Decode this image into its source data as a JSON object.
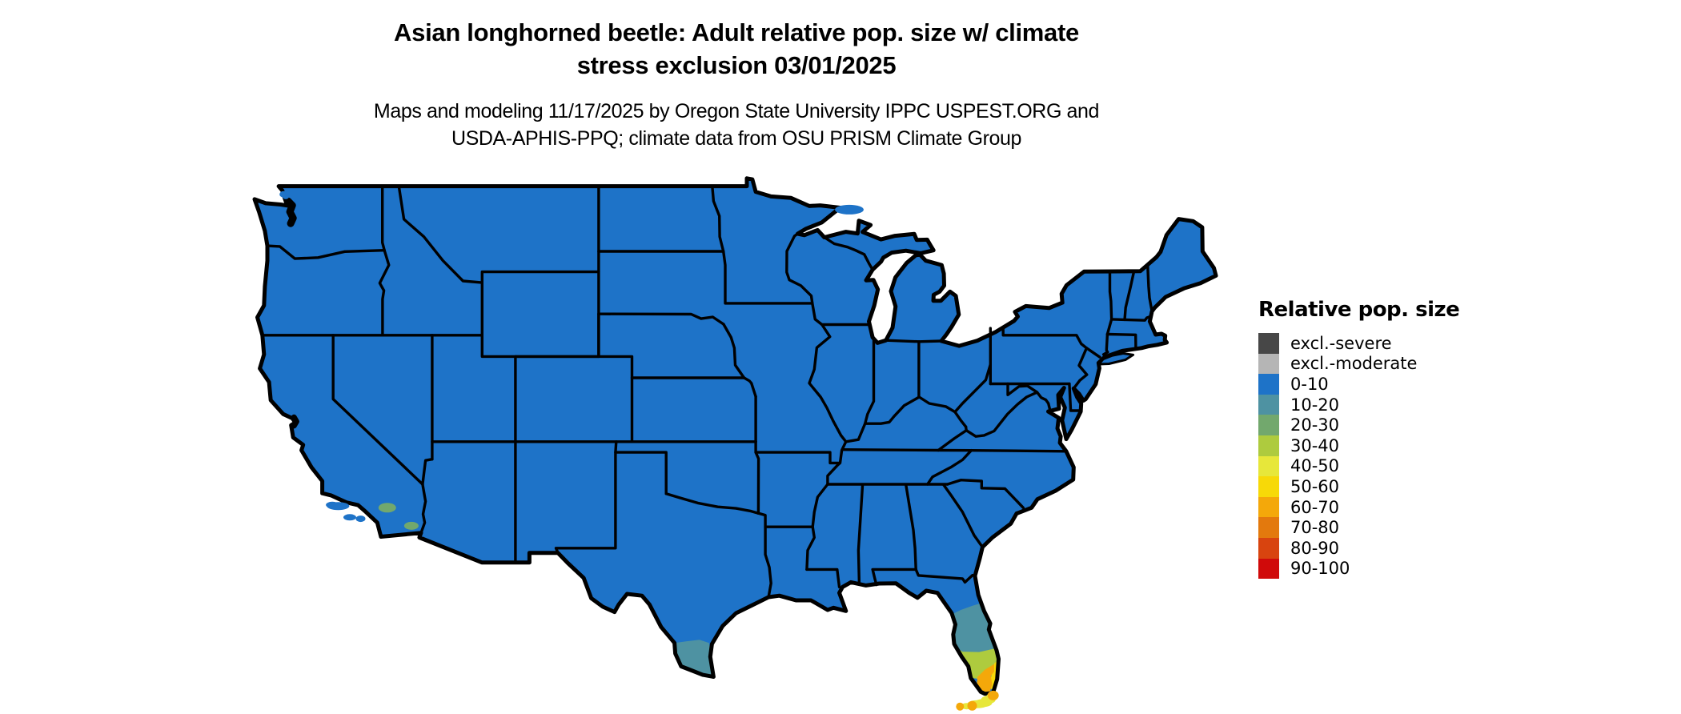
{
  "title": {
    "line1": "Asian longhorned beetle: Adult relative pop. size w/ climate",
    "line2": "stress exclusion 03/01/2025"
  },
  "subtitle": {
    "line1": "Maps and modeling 11/17/2025 by Oregon State University IPPC USPEST.ORG and",
    "line2": "USDA-APHIS-PPQ; climate data from OSU PRISM Climate Group"
  },
  "legend": {
    "title": "Relative pop. size",
    "items": [
      {
        "key": "excl_severe",
        "label": "excl.-severe",
        "color": "#474747"
      },
      {
        "key": "excl_moderate",
        "label": "excl.-moderate",
        "color": "#B5B5B5"
      },
      {
        "key": "v0_10",
        "label": "0-10",
        "color": "#1E73C8"
      },
      {
        "key": "v10_20",
        "label": "10-20",
        "color": "#4E92A2"
      },
      {
        "key": "v20_30",
        "label": "20-30",
        "color": "#72A86D"
      },
      {
        "key": "v30_40",
        "label": "30-40",
        "color": "#AECB3E"
      },
      {
        "key": "v40_50",
        "label": "40-50",
        "color": "#E7E73A"
      },
      {
        "key": "v50_60",
        "label": "50-60",
        "color": "#F7D908"
      },
      {
        "key": "v60_70",
        "label": "60-70",
        "color": "#F4A80A"
      },
      {
        "key": "v70_80",
        "label": "70-80",
        "color": "#E3790D"
      },
      {
        "key": "v80_90",
        "label": "80-90",
        "color": "#D8440F"
      },
      {
        "key": "v90_100",
        "label": "90-100",
        "color": "#D00A0A"
      }
    ]
  },
  "map": {
    "region": "Continental United States",
    "border_color": "#000000",
    "base_fill_key": "v0_10",
    "features": [
      {
        "name": "central-florida-band",
        "key": "v10_20"
      },
      {
        "name": "south-florida-band",
        "key": "v30_40"
      },
      {
        "name": "southeast-florida-coast",
        "key": "v50_60"
      },
      {
        "name": "far-south-florida",
        "key": "v60_70"
      },
      {
        "name": "florida-keys",
        "key": "v40_50"
      },
      {
        "name": "florida-keys-spots",
        "key": "v60_70"
      },
      {
        "name": "south-texas-rio-grande-valley",
        "key": "v10_20"
      },
      {
        "name": "southern-california-desert-spots",
        "key": "v20_30"
      }
    ]
  }
}
